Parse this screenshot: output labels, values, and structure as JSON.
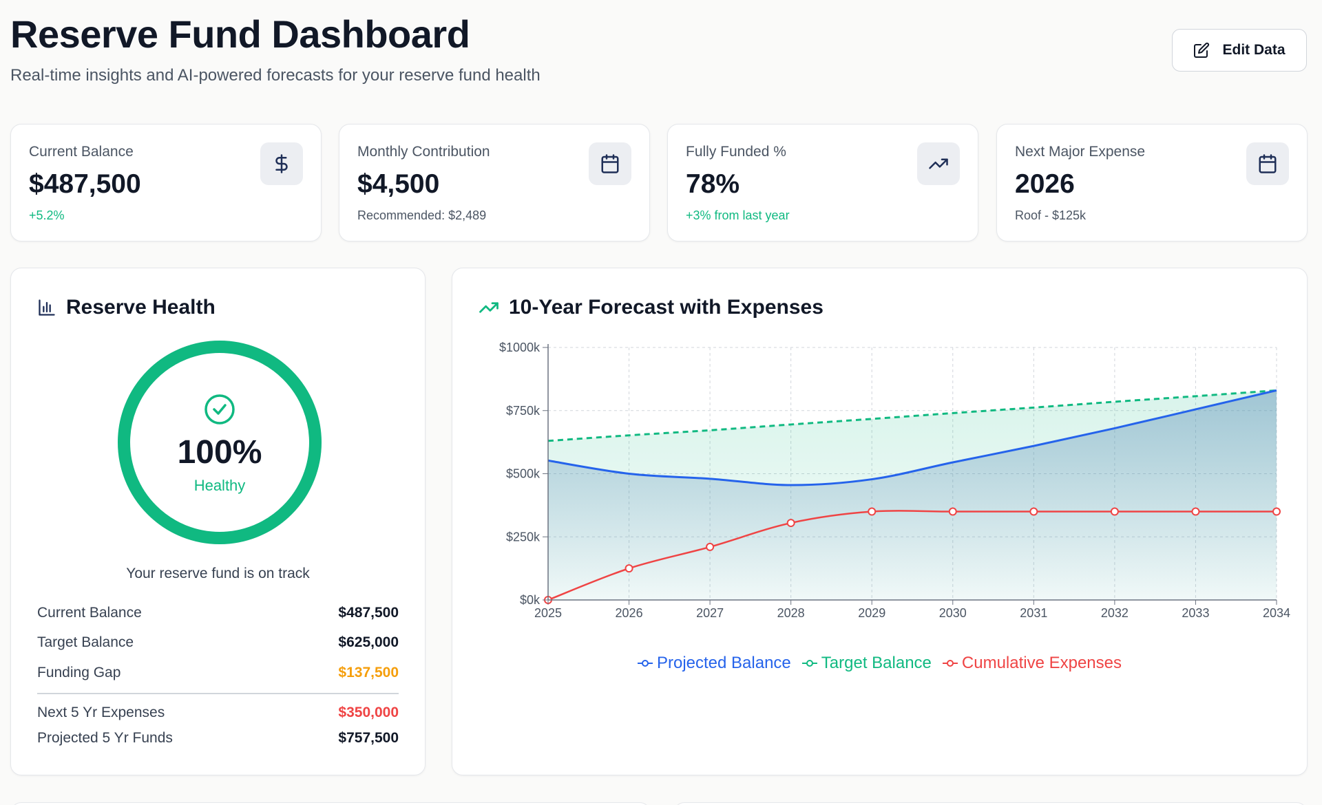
{
  "header": {
    "title": "Reserve Fund Dashboard",
    "subtitle": "Real-time insights and AI-powered forecasts for your reserve fund health",
    "edit_label": "Edit Data"
  },
  "stats": [
    {
      "label": "Current Balance",
      "value": "$487,500",
      "sub": "+5.2%",
      "icon": "dollar-icon"
    },
    {
      "label": "Monthly Contribution",
      "value": "$4,500",
      "sub": "Recommended: $2,489",
      "icon": "calendar-icon"
    },
    {
      "label": "Fully Funded %",
      "value": "78%",
      "sub": "+3% from last year",
      "icon": "trending-up-icon"
    },
    {
      "label": "Next Major Expense",
      "value": "2026",
      "sub": "Roof - $125k",
      "icon": "calendar-icon"
    }
  ],
  "health": {
    "title": "Reserve Health",
    "percent": "100%",
    "status": "Healthy",
    "percent_value": 100,
    "message": "Your reserve fund is on track",
    "rows": [
      {
        "label": "Current Balance",
        "value": "$487,500"
      },
      {
        "label": "Target Balance",
        "value": "$625,000"
      },
      {
        "label": "Funding Gap",
        "value": "$137,500"
      },
      {
        "label": "Next 5 Yr Expenses",
        "value": "$350,000"
      },
      {
        "label": "Projected 5 Yr Funds",
        "value": "$757,500"
      }
    ]
  },
  "forecast": {
    "title": "10-Year Forecast with Expenses"
  },
  "colors": {
    "accent_green": "#10b981",
    "projected": "#2563eb",
    "target": "#10b981",
    "expenses": "#ef4444",
    "gap": "#f59e0b"
  },
  "chart_data": {
    "type": "line",
    "x": [
      "2025",
      "2026",
      "2027",
      "2028",
      "2029",
      "2030",
      "2031",
      "2032",
      "2033",
      "2034"
    ],
    "ylim": [
      0,
      1000
    ],
    "yticks": [
      "$0k",
      "$250k",
      "$500k",
      "$750k",
      "$1000k"
    ],
    "ytick_values": [
      0,
      250,
      500,
      750,
      1000
    ],
    "grid": true,
    "legend_position": "bottom",
    "series": [
      {
        "name": "Projected Balance",
        "values": [
          552,
          500,
          480,
          455,
          478,
          545,
          610,
          680,
          755,
          830
        ]
      },
      {
        "name": "Target Balance",
        "values": [
          630,
          652,
          672,
          695,
          717,
          740,
          762,
          785,
          807,
          830
        ]
      },
      {
        "name": "Cumulative Expenses",
        "values": [
          0,
          125,
          210,
          305,
          350,
          350,
          350,
          350,
          350,
          350
        ]
      }
    ]
  }
}
